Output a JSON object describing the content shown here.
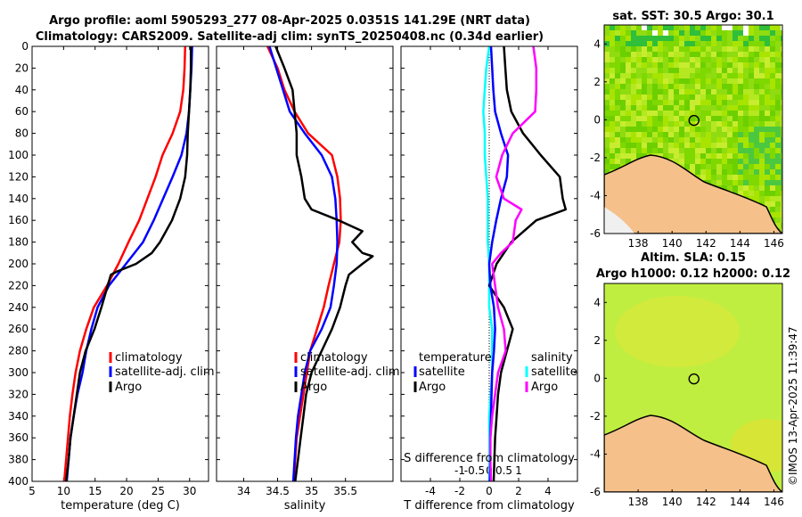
{
  "figure": {
    "title_line1": "Argo profile: aoml 5905293_277 08-Apr-2025 0.0351S 141.29E (NRT data)",
    "title_line2": "Climatology: CARS2009. Satellite-adj clim: synTS_20250408.nc (0.34d earlier)",
    "footer_stamp": "©IMOS 13-Apr-2025 11:39:47"
  },
  "colors": {
    "climatology": "#ff0000",
    "satellite": "#0000ff",
    "argo": "#000000",
    "temp_diff": "#00ffff",
    "sal_diff": "#ff00ff",
    "land": "#f5c08a",
    "sst_field": "#9be000",
    "sla_field": "#c0ee40"
  },
  "chart_data": [
    {
      "id": "temperature",
      "type": "line",
      "xlabel": "temperature (deg C)",
      "ylabel": "",
      "xlim": [
        5,
        33
      ],
      "ylim": [
        400,
        0
      ],
      "xticks": [
        "5",
        "10",
        "15",
        "20",
        "25",
        "30"
      ],
      "yticks": [
        "0",
        "20",
        "40",
        "60",
        "80",
        "100",
        "120",
        "140",
        "160",
        "180",
        "200",
        "220",
        "240",
        "260",
        "280",
        "300",
        "320",
        "340",
        "360",
        "380",
        "400"
      ],
      "legend": [
        "climatology",
        "satellite-adj. clim",
        "Argo"
      ],
      "series": [
        {
          "name": "climatology",
          "color": "#ff0000",
          "depth": [
            0,
            20,
            40,
            60,
            80,
            100,
            120,
            140,
            160,
            180,
            200,
            220,
            240,
            260,
            280,
            300,
            320,
            340,
            360,
            380,
            400
          ],
          "values": [
            29.3,
            29.2,
            29.0,
            28.5,
            27.3,
            25.7,
            24.6,
            23.3,
            22.0,
            20.3,
            18.7,
            16.9,
            14.8,
            13.6,
            12.6,
            11.9,
            11.4,
            11.0,
            10.7,
            10.4,
            10.1
          ]
        },
        {
          "name": "satellite-adj. clim",
          "color": "#0000ff",
          "depth": [
            0,
            20,
            40,
            60,
            80,
            100,
            120,
            140,
            160,
            180,
            200,
            220,
            240,
            260,
            280,
            300,
            320,
            340,
            360,
            380,
            400
          ],
          "values": [
            30.4,
            30.3,
            30.1,
            29.9,
            29.5,
            28.7,
            27.3,
            25.8,
            24.3,
            22.6,
            19.9,
            17.2,
            15.4,
            14.4,
            13.6,
            13.0,
            12.2,
            11.6,
            11.1,
            10.8,
            10.5
          ]
        },
        {
          "name": "Argo",
          "color": "#000000",
          "depth": [
            0,
            20,
            40,
            60,
            80,
            100,
            120,
            140,
            160,
            180,
            190,
            200,
            207,
            210,
            220,
            240,
            260,
            280,
            300,
            320,
            340,
            360,
            380,
            400
          ],
          "values": [
            30.2,
            30.2,
            30.1,
            29.9,
            29.7,
            29.6,
            29.3,
            28.5,
            27.2,
            25.3,
            24.0,
            21.5,
            18.5,
            17.5,
            17.0,
            16.0,
            14.9,
            13.5,
            12.6,
            12.1,
            11.6,
            11.1,
            10.8,
            10.4
          ]
        }
      ]
    },
    {
      "id": "salinity",
      "type": "line",
      "xlabel": "salinity",
      "ylabel": "",
      "xlim": [
        33.6,
        36.2
      ],
      "ylim": [
        400,
        0
      ],
      "xticks": [
        "34",
        "34.5",
        "35",
        "35.5"
      ],
      "legend": [
        "climatology",
        "satellite-adj. clim",
        "Argo"
      ],
      "series": [
        {
          "name": "climatology",
          "color": "#ff0000",
          "depth": [
            0,
            20,
            40,
            60,
            80,
            100,
            120,
            140,
            160,
            180,
            200,
            220,
            240,
            260,
            280,
            300,
            320,
            340,
            360,
            380,
            400
          ],
          "values": [
            34.35,
            34.5,
            34.6,
            34.75,
            34.95,
            35.3,
            35.38,
            35.42,
            35.43,
            35.41,
            35.33,
            35.25,
            35.18,
            35.08,
            34.98,
            34.93,
            34.88,
            34.83,
            34.78,
            34.76,
            34.74
          ]
        },
        {
          "name": "satellite-adj. clim",
          "color": "#0000ff",
          "depth": [
            0,
            20,
            40,
            60,
            80,
            100,
            120,
            140,
            160,
            180,
            200,
            220,
            240,
            260,
            280,
            300,
            320,
            340,
            360,
            380,
            400
          ],
          "values": [
            34.38,
            34.48,
            34.58,
            34.68,
            34.9,
            35.15,
            35.3,
            35.35,
            35.37,
            35.38,
            35.37,
            35.33,
            35.28,
            35.15,
            34.98,
            34.9,
            34.85,
            34.8,
            34.77,
            34.75,
            34.73
          ]
        },
        {
          "name": "Argo",
          "color": "#000000",
          "depth": [
            0,
            20,
            40,
            60,
            80,
            100,
            120,
            140,
            150,
            160,
            170,
            180,
            190,
            193,
            200,
            210,
            220,
            240,
            260,
            280,
            300,
            320,
            340,
            360,
            380,
            400
          ],
          "values": [
            34.47,
            34.6,
            34.72,
            34.75,
            34.78,
            34.78,
            34.85,
            34.9,
            35.0,
            35.4,
            35.75,
            35.6,
            35.75,
            35.9,
            35.75,
            35.55,
            35.5,
            35.42,
            35.3,
            35.15,
            35.0,
            34.92,
            34.88,
            34.84,
            34.8,
            34.76
          ]
        }
      ]
    },
    {
      "id": "difference",
      "type": "line",
      "xlabel": "T difference from climatology",
      "xlabel_top": "S difference from climatology",
      "ylabel": "",
      "xlim": [
        -6,
        6
      ],
      "ylim": [
        400,
        0
      ],
      "xticks": [
        "-4",
        "-2",
        "0",
        "2",
        "4"
      ],
      "xticks_top": [
        "-1",
        "-0.5",
        "0",
        "0.5",
        "1"
      ],
      "legend_title_left": "temperature",
      "legend_title_right": "salinity",
      "legend": [
        "satellite",
        "Argo",
        "satellite",
        "Argo"
      ],
      "series": [
        {
          "name": "temperature satellite",
          "color": "#00ffff",
          "depth": [
            0,
            20,
            40,
            60,
            80,
            100,
            120,
            140,
            160,
            180,
            200,
            220,
            240,
            260,
            280,
            300,
            320,
            340,
            360,
            380,
            400
          ],
          "values": [
            0.0,
            -0.2,
            -0.3,
            -0.4,
            -0.3,
            -0.3,
            -0.2,
            -0.1,
            -0.1,
            -0.1,
            0.0,
            0.0,
            0.0,
            0.2,
            0.2,
            0.2,
            0.1,
            0.0,
            0.0,
            0.0,
            0.0
          ]
        },
        {
          "name": "temperature Argo",
          "color": "#000000",
          "depth": [
            0,
            20,
            40,
            60,
            80,
            100,
            120,
            140,
            150,
            160,
            180,
            200,
            220,
            240,
            260,
            280,
            300,
            320,
            340,
            360,
            380,
            400
          ],
          "values": [
            1.0,
            1.1,
            1.2,
            1.5,
            2.3,
            3.5,
            4.8,
            5.0,
            5.2,
            3.2,
            1.5,
            0.5,
            0.0,
            1.0,
            1.6,
            1.2,
            0.8,
            0.6,
            0.5,
            0.4,
            0.35,
            0.3
          ]
        },
        {
          "name": "salinity satellite",
          "color": "#0000ff",
          "depth": [
            0,
            20,
            40,
            60,
            80,
            100,
            120,
            140,
            160,
            180,
            200,
            220,
            240,
            260,
            280,
            300,
            320,
            340,
            360,
            380,
            400
          ],
          "values": [
            0.03,
            0.05,
            0.07,
            0.1,
            0.2,
            0.32,
            0.3,
            0.2,
            0.12,
            0.05,
            0.0,
            0.02,
            0.08,
            0.1,
            0.08,
            0.05,
            0.04,
            0.03,
            0.02,
            0.02,
            0.01
          ]
        },
        {
          "name": "salinity Argo",
          "color": "#ff00ff",
          "depth": [
            0,
            20,
            40,
            60,
            80,
            100,
            120,
            140,
            150,
            160,
            180,
            190,
            200,
            220,
            240,
            260,
            280,
            300,
            320,
            340,
            360,
            380,
            400
          ],
          "values": [
            0.75,
            0.8,
            0.8,
            0.78,
            0.4,
            0.22,
            0.12,
            0.25,
            0.55,
            0.45,
            0.4,
            0.2,
            0.05,
            0.1,
            0.15,
            0.25,
            0.28,
            0.15,
            0.1,
            0.05,
            0.02,
            0.02,
            0.03
          ]
        }
      ]
    },
    {
      "id": "sst_map",
      "type": "heatmap",
      "title": "sat. SST: 30.5 Argo: 30.1",
      "xlim": [
        136,
        146.5
      ],
      "ylim": [
        -6,
        5
      ],
      "xticks": [
        "138",
        "140",
        "142",
        "144",
        "146"
      ],
      "yticks": [
        "4",
        "2",
        "0",
        "-2",
        "-4",
        "-6"
      ],
      "marker": {
        "lon": 141.29,
        "lat": -0.0351
      }
    },
    {
      "id": "sla_map",
      "type": "heatmap",
      "title": "Altim. SLA: 0.15",
      "subtitle": "Argo h1000: 0.12 h2000: 0.12",
      "xlim": [
        136,
        146.5
      ],
      "ylim": [
        -6,
        5
      ],
      "xticks": [
        "138",
        "140",
        "142",
        "144",
        "146"
      ],
      "yticks": [
        "4",
        "2",
        "0",
        "-2",
        "-4",
        "-6"
      ],
      "marker": {
        "lon": 141.29,
        "lat": -0.0351
      }
    }
  ]
}
